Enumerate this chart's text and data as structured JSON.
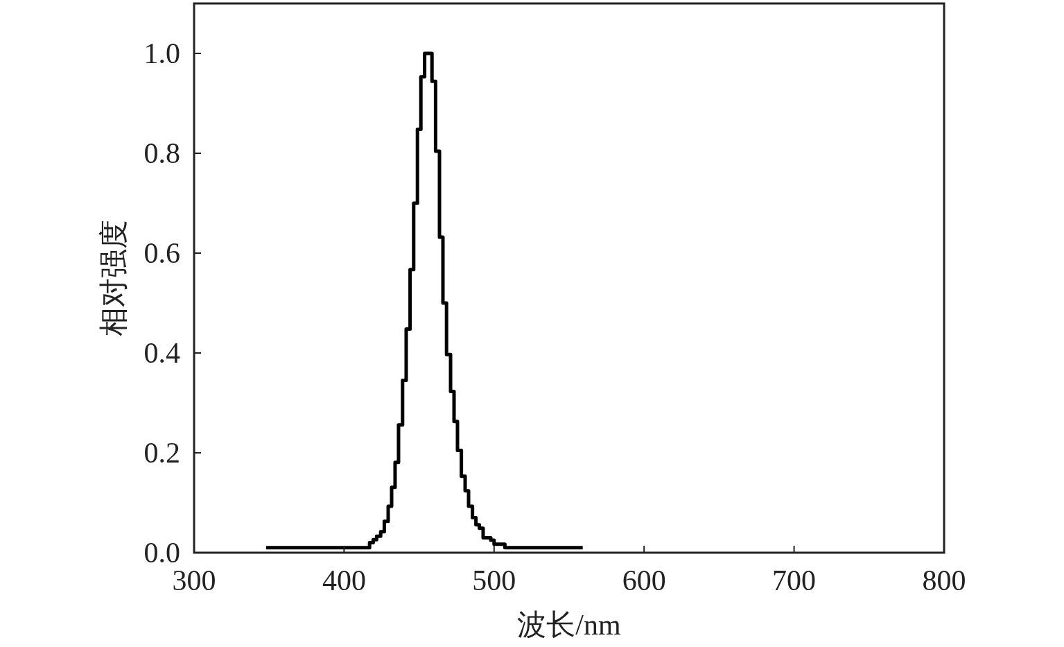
{
  "chart_data": {
    "type": "step",
    "xlabel": "波长/nm",
    "ylabel": "相对强度",
    "color": "#000000",
    "x": [
      348,
      417.0,
      419.4,
      421.7,
      424.4,
      426.8,
      429.4,
      431.7,
      434.0,
      436.3,
      439.0,
      441.4,
      444.0,
      446.4,
      448.9,
      451.2,
      453.7,
      458.6,
      461.0,
      463.6,
      465.9,
      468.3,
      471.0,
      473.3,
      475.6,
      478.2,
      480.7,
      483.0,
      485.6,
      487.9,
      490.2,
      492.7,
      497.8,
      500.0,
      507.2,
      559.1
    ],
    "values": [
      0.01,
      0.02,
      0.026,
      0.033,
      0.042,
      0.063,
      0.093,
      0.131,
      0.181,
      0.256,
      0.345,
      0.448,
      0.567,
      0.7,
      0.848,
      0.953,
      1.0,
      0.944,
      0.804,
      0.632,
      0.5,
      0.397,
      0.323,
      0.263,
      0.205,
      0.153,
      0.124,
      0.093,
      0.07,
      0.056,
      0.049,
      0.03,
      0.025,
      0.017,
      0.01,
      0.01
    ],
    "xlim": [
      300,
      800
    ],
    "ylim": [
      0,
      1.1
    ],
    "xticks": [
      300,
      400,
      500,
      600,
      700,
      800
    ],
    "yticks": [
      {
        "value": 0,
        "label": "0.0"
      },
      {
        "value": 0.2,
        "label": "0.2"
      },
      {
        "value": 0.4,
        "label": "0.4"
      },
      {
        "value": 0.6,
        "label": "0.6"
      },
      {
        "value": 0.8,
        "label": "0.8"
      },
      {
        "value": 1.0,
        "label": "1.0"
      }
    ]
  }
}
